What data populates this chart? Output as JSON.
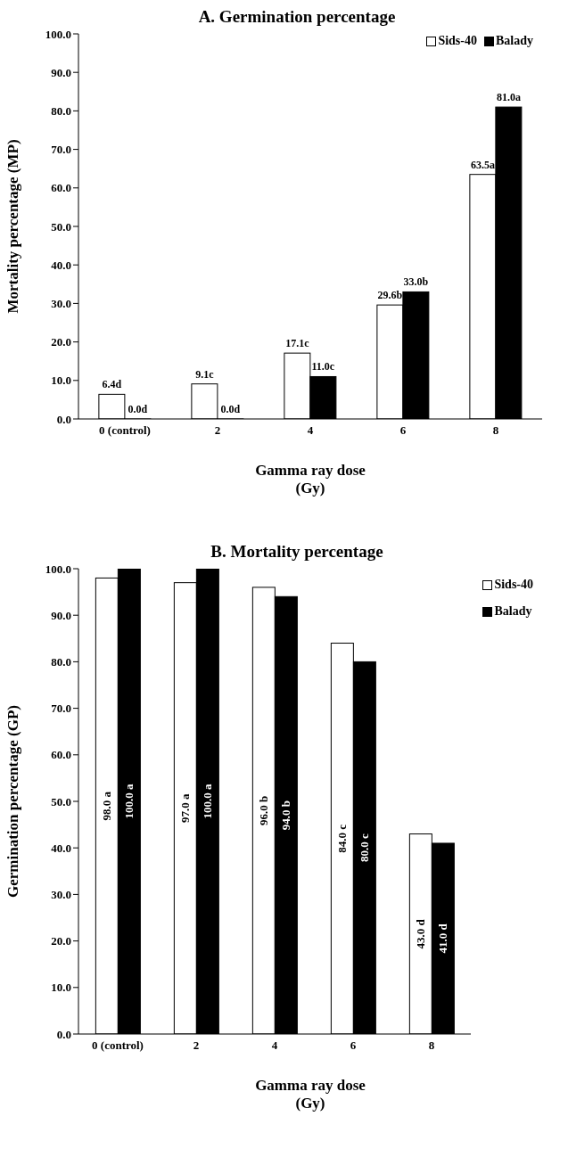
{
  "chart_data": [
    {
      "type": "bar",
      "title": "A. Germination percentage",
      "xlabel": "Gamma ray dose\n(Gy)",
      "ylabel": "Mortality percentage (MP)",
      "categories": [
        "0 (control)",
        "2",
        "4",
        "6",
        "8"
      ],
      "legend": "top right",
      "ylim": [
        0,
        100
      ],
      "yticks": [
        {
          "value": 0,
          "label": "0.0"
        },
        {
          "value": 10,
          "label": "10.0"
        },
        {
          "value": 20,
          "label": "20.0"
        },
        {
          "value": 30,
          "label": "30.0"
        },
        {
          "value": 40,
          "label": "40.0"
        },
        {
          "value": 50,
          "label": "50.0"
        },
        {
          "value": 60,
          "label": "60.0"
        },
        {
          "value": 70,
          "label": "70.0"
        },
        {
          "value": 80,
          "label": "80.0"
        },
        {
          "value": 90,
          "label": "90.0"
        },
        {
          "value": 100,
          "label": "100.0"
        }
      ],
      "series": [
        {
          "name": "Sids-40",
          "color": "#ffffff",
          "values": [
            6.4,
            9.1,
            17.1,
            29.6,
            63.5
          ],
          "value_labels": [
            "6.4d",
            "9.1c",
            "17.1c",
            "29.6b",
            "63.5a"
          ]
        },
        {
          "name": "Balady",
          "color": "#000000",
          "values": [
            0,
            0,
            11,
            33,
            81
          ],
          "value_labels": [
            "0.0d",
            "0.0d",
            "11.0c",
            "33.0b",
            "81.0a"
          ]
        }
      ]
    },
    {
      "type": "bar",
      "title": "B. Mortality percentage",
      "xlabel": "Gamma ray dose\n(Gy)",
      "ylabel": "Germination percentage (GP)",
      "categories": [
        "0 (control)",
        "2",
        "4",
        "6",
        "8"
      ],
      "legend": "top right",
      "ylim": [
        0,
        100
      ],
      "yticks": [
        {
          "value": 0,
          "label": "0.0"
        },
        {
          "value": 10,
          "label": "10.0"
        },
        {
          "value": 20,
          "label": "20.0"
        },
        {
          "value": 30,
          "label": "30.0"
        },
        {
          "value": 40,
          "label": "40.0"
        },
        {
          "value": 50,
          "label": "50.0"
        },
        {
          "value": 60,
          "label": "60.0"
        },
        {
          "value": 70,
          "label": "70.0"
        },
        {
          "value": 80,
          "label": "80.0"
        },
        {
          "value": 90,
          "label": "90.0"
        },
        {
          "value": 100,
          "label": "100.0"
        }
      ],
      "series": [
        {
          "name": "Sids-40",
          "color": "#ffffff",
          "values": [
            98,
            97,
            96,
            84,
            43
          ],
          "value_labels": [
            "98.0 a",
            "97.0 a",
            "96.0 b",
            "84.0 c",
            "43.0 d"
          ]
        },
        {
          "name": "Balady",
          "color": "#000000",
          "values": [
            100,
            100,
            94,
            80,
            41
          ],
          "value_labels": [
            "100.0 a",
            "100.0 a",
            "94.0 b",
            "80.0 c",
            "41.0 d"
          ]
        }
      ]
    }
  ]
}
